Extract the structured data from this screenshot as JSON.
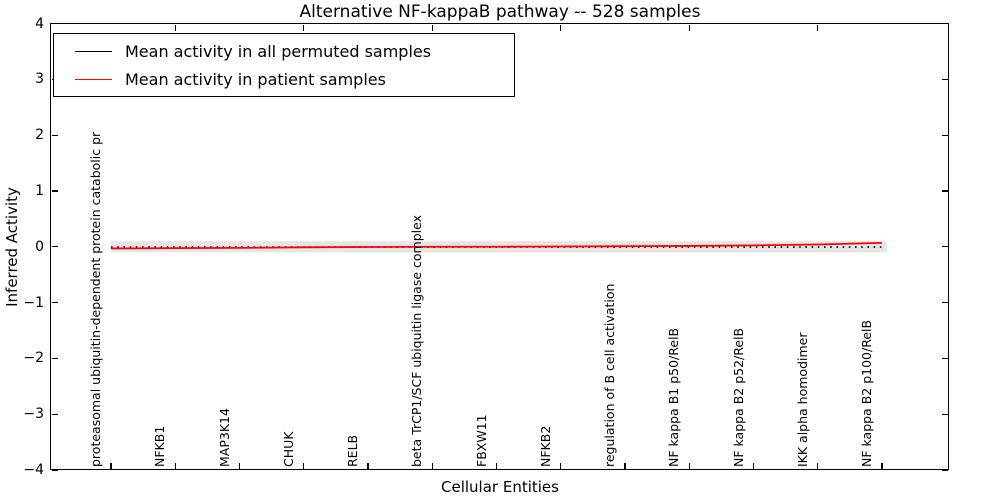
{
  "title": "Alternative NF-kappaB pathway -- 528 samples",
  "chart_data": {
    "type": "line",
    "title": "Alternative NF-kappaB pathway -- 528 samples",
    "xlabel": "Cellular Entities",
    "ylabel": "Inferred Activity",
    "ylim": [
      -4,
      4
    ],
    "ytick_labels": [
      "4",
      "3",
      "2",
      "1",
      "0",
      "−1",
      "−2",
      "−3",
      "−4"
    ],
    "grid": false,
    "legend_position": "upper left",
    "categories": [
      "proteasomal ubiquitin-dependent protein catabolic pr",
      "NFKB1",
      "MAP3K14",
      "CHUK",
      "RELB",
      "beta TrCP1/SCF ubiquitin ligase complex",
      "FBXW11",
      "NFKB2",
      "regulation of B cell activation",
      "NF kappa B1 p50/RelB",
      "NF kappa B2 p52/RelB",
      "IKK alpha homodimer",
      "NF kappa B2 p100/RelB"
    ],
    "series": [
      {
        "name": "Mean activity in all permuted samples",
        "color": "#000000",
        "style": "dotted",
        "values": [
          -0.005,
          -0.005,
          -0.005,
          -0.005,
          -0.005,
          -0.005,
          -0.005,
          -0.005,
          -0.005,
          -0.005,
          -0.005,
          -0.005,
          -0.005
        ]
      },
      {
        "name": "Mean activity in patient samples",
        "color": "#ff0000",
        "style": "solid",
        "values": [
          -0.03,
          -0.025,
          -0.02,
          -0.01,
          -0.005,
          0.0,
          0.0,
          0.005,
          0.01,
          0.015,
          0.025,
          0.04,
          0.07
        ]
      }
    ],
    "band": {
      "upper": 0.1,
      "lower": -0.1,
      "color": "#e6e6e6"
    }
  }
}
